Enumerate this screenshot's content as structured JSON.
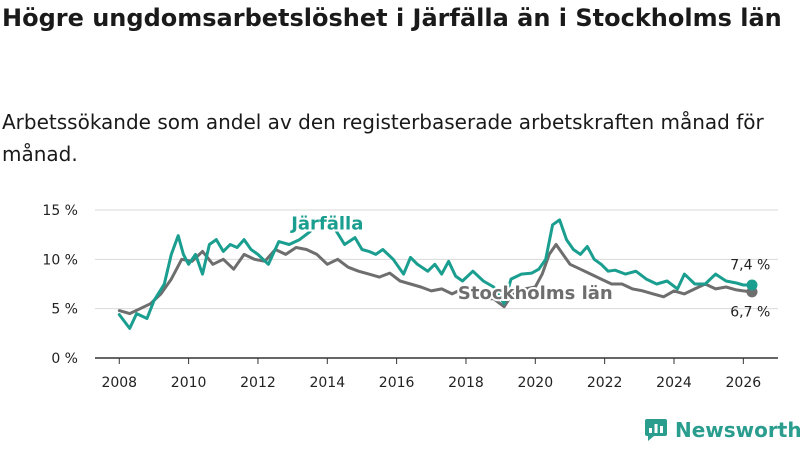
{
  "title": "Högre ungdomsarbetslöshet i Järfälla än i Stockholms län",
  "subtitle": "Arbetssökande som andel av den registerbaserade arbetskraften månad för månad.",
  "brand": {
    "name": "Newsworthy"
  },
  "colors": {
    "jarfalla": "#1a9e8f",
    "stockholm": "#6e6e6e",
    "grid": "#d9d9d9",
    "axis": "#333333",
    "text": "#222222"
  },
  "chart_data": {
    "type": "line",
    "title": "Högre ungdomsarbetslöshet i Järfälla än i Stockholms län",
    "xlabel": "",
    "ylabel": "",
    "xlim": [
      2007.3,
      2027.0
    ],
    "ylim": [
      0,
      15
    ],
    "x_ticks": [
      2008,
      2010,
      2012,
      2014,
      2016,
      2018,
      2020,
      2022,
      2024,
      2026
    ],
    "x_tick_labels": [
      "2008",
      "2010",
      "2012",
      "2014",
      "2016",
      "2018",
      "2020",
      "2022",
      "2024",
      "2026"
    ],
    "y_ticks": [
      0,
      5,
      10,
      15
    ],
    "y_tick_labels": [
      "0 %",
      "5 %",
      "10 %",
      "15 %"
    ],
    "grid": true,
    "series": [
      {
        "name": "Järfälla",
        "label": "Järfälla",
        "end_label": "7,4 %",
        "x": [
          2008.0,
          2008.3,
          2008.5,
          2008.8,
          2009.0,
          2009.3,
          2009.5,
          2009.7,
          2009.85,
          2010.0,
          2010.2,
          2010.4,
          2010.6,
          2010.8,
          2011.0,
          2011.2,
          2011.4,
          2011.6,
          2011.8,
          2012.0,
          2012.3,
          2012.6,
          2012.9,
          2013.2,
          2013.5,
          2013.7,
          2013.9,
          2014.2,
          2014.5,
          2014.8,
          2015.0,
          2015.2,
          2015.4,
          2015.6,
          2015.9,
          2016.2,
          2016.4,
          2016.6,
          2016.9,
          2017.1,
          2017.3,
          2017.5,
          2017.7,
          2017.9,
          2018.2,
          2018.5,
          2018.8,
          2019.1,
          2019.3,
          2019.6,
          2019.9,
          2020.1,
          2020.3,
          2020.5,
          2020.7,
          2020.9,
          2021.1,
          2021.3,
          2021.5,
          2021.7,
          2021.9,
          2022.1,
          2022.3,
          2022.6,
          2022.9,
          2023.2,
          2023.5,
          2023.8,
          2024.1,
          2024.3,
          2024.6,
          2024.9,
          2025.2,
          2025.5,
          2025.8,
          2026.0,
          2026.25
        ],
        "values": [
          4.4,
          3.0,
          4.5,
          4.0,
          5.8,
          7.5,
          10.5,
          12.4,
          10.5,
          9.5,
          10.5,
          8.5,
          11.5,
          12.0,
          10.8,
          11.5,
          11.2,
          12.0,
          11.0,
          10.5,
          9.5,
          11.8,
          11.5,
          12.0,
          12.8,
          13.9,
          14.1,
          13.2,
          11.5,
          12.2,
          11.0,
          10.8,
          10.5,
          11.0,
          10.0,
          8.5,
          10.2,
          9.5,
          8.8,
          9.5,
          8.5,
          9.8,
          8.3,
          7.8,
          8.8,
          7.8,
          7.2,
          5.5,
          8.0,
          8.5,
          8.6,
          9.0,
          10.0,
          13.5,
          14.0,
          12.0,
          11.0,
          10.5,
          11.3,
          10.0,
          9.5,
          8.8,
          8.9,
          8.5,
          8.8,
          8.0,
          7.5,
          7.8,
          7.0,
          8.5,
          7.5,
          7.5,
          8.5,
          7.8,
          7.6,
          7.4,
          7.4
        ]
      },
      {
        "name": "Stockholms län",
        "label": "Stockholms län",
        "end_label": "6,7 %",
        "x": [
          2008.0,
          2008.3,
          2008.6,
          2008.9,
          2009.2,
          2009.5,
          2009.8,
          2010.1,
          2010.4,
          2010.7,
          2011.0,
          2011.3,
          2011.6,
          2011.9,
          2012.2,
          2012.5,
          2012.8,
          2013.1,
          2013.4,
          2013.7,
          2014.0,
          2014.3,
          2014.6,
          2014.9,
          2015.2,
          2015.5,
          2015.8,
          2016.1,
          2016.4,
          2016.7,
          2017.0,
          2017.3,
          2017.6,
          2017.9,
          2018.2,
          2018.5,
          2018.8,
          2019.1,
          2019.4,
          2019.7,
          2020.0,
          2020.2,
          2020.4,
          2020.6,
          2020.8,
          2021.0,
          2021.3,
          2021.6,
          2021.9,
          2022.2,
          2022.5,
          2022.8,
          2023.1,
          2023.4,
          2023.7,
          2024.0,
          2024.3,
          2024.6,
          2024.9,
          2025.2,
          2025.5,
          2025.8,
          2026.0,
          2026.25
        ],
        "values": [
          4.8,
          4.5,
          5.0,
          5.5,
          6.5,
          8.0,
          10.0,
          9.8,
          10.8,
          9.5,
          10.0,
          9.0,
          10.5,
          10.0,
          9.8,
          11.0,
          10.5,
          11.2,
          11.0,
          10.5,
          9.5,
          10.0,
          9.2,
          8.8,
          8.5,
          8.2,
          8.6,
          7.8,
          7.5,
          7.2,
          6.8,
          7.0,
          6.5,
          7.0,
          6.5,
          6.0,
          6.0,
          5.2,
          6.8,
          7.0,
          7.2,
          8.5,
          10.5,
          11.5,
          10.5,
          9.5,
          9.0,
          8.5,
          8.0,
          7.5,
          7.5,
          7.0,
          6.8,
          6.5,
          6.2,
          6.8,
          6.5,
          7.0,
          7.5,
          7.0,
          7.2,
          6.9,
          6.8,
          6.7
        ]
      }
    ]
  }
}
